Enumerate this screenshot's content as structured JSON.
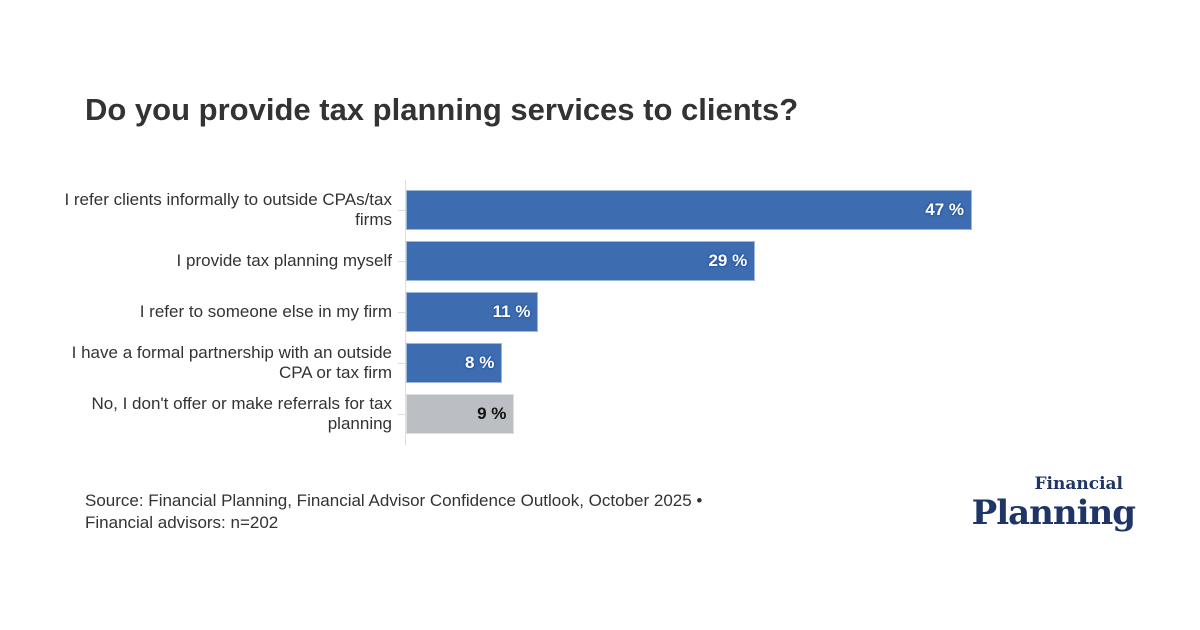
{
  "chart_data": {
    "type": "bar",
    "orientation": "horizontal",
    "title": "Do you provide tax planning services to clients?",
    "categories": [
      "I refer clients informally to outside CPAs/tax firms",
      "I provide tax planning myself",
      "I refer to someone else in my firm",
      "I have a formal partnership with an outside CPA or tax firm",
      "No, I don't offer or make referrals for tax planning"
    ],
    "values": [
      47,
      29,
      11,
      8,
      9
    ],
    "value_labels": [
      "47 %",
      "29 %",
      "11 %",
      "8 %",
      "9 %"
    ],
    "colors": [
      "#3d6cb0",
      "#3d6cb0",
      "#3d6cb0",
      "#3d6cb0",
      "#bbbfc3"
    ],
    "unit": "%",
    "grid": false,
    "legend": "none"
  },
  "source": [
    "Source: Financial Planning, Financial Advisor Confidence Outlook, October 2025 •",
    "Financial advisors: n=202"
  ],
  "logo": {
    "line1": "Financial",
    "line2": "Planning"
  }
}
